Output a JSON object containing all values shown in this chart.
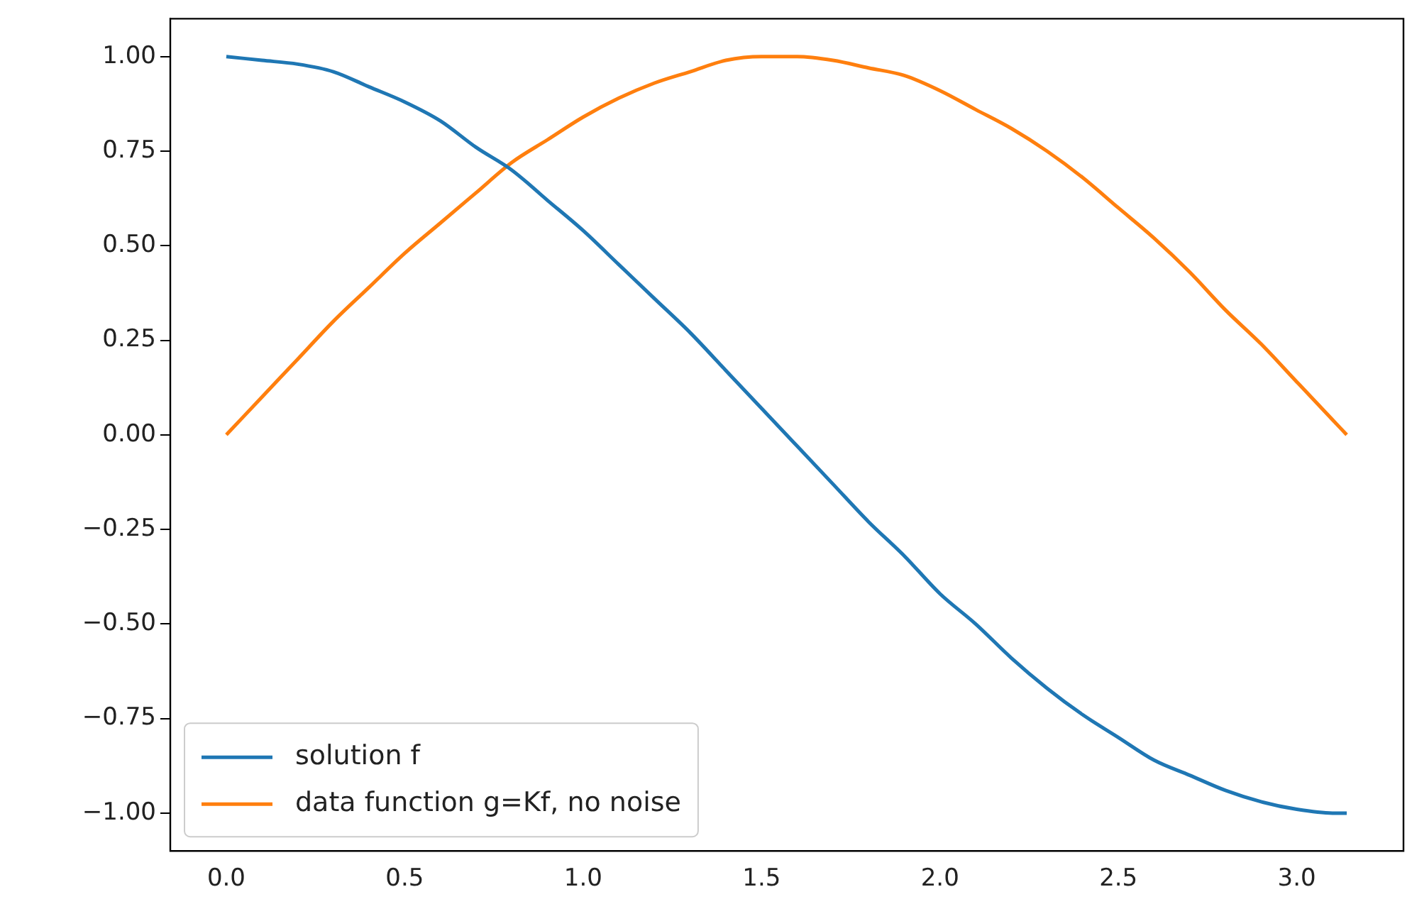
{
  "chart_data": {
    "type": "line",
    "x": [
      0,
      0.1,
      0.2,
      0.3,
      0.4,
      0.5,
      0.6,
      0.7,
      0.8,
      0.9,
      1.0,
      1.1,
      1.2,
      1.3,
      1.4,
      1.5,
      1.6,
      1.7,
      1.8,
      1.9,
      2.0,
      2.1,
      2.2,
      2.3,
      2.4,
      2.5,
      2.6,
      2.7,
      2.8,
      2.9,
      3.0,
      3.1,
      3.14
    ],
    "series": [
      {
        "name": "solution f",
        "color": "#1f77b4",
        "values": [
          1,
          0.99,
          0.98,
          0.96,
          0.92,
          0.88,
          0.83,
          0.76,
          0.7,
          0.62,
          0.54,
          0.45,
          0.36,
          0.27,
          0.17,
          0.07,
          -0.03,
          -0.13,
          -0.23,
          -0.32,
          -0.42,
          -0.5,
          -0.59,
          -0.67,
          -0.74,
          -0.8,
          -0.86,
          -0.9,
          -0.94,
          -0.97,
          -0.99,
          -1,
          -1
        ]
      },
      {
        "name": "data function g=Kf, no noise",
        "color": "#ff7f0e",
        "values": [
          0,
          0.1,
          0.2,
          0.3,
          0.39,
          0.48,
          0.56,
          0.64,
          0.72,
          0.78,
          0.84,
          0.89,
          0.93,
          0.96,
          0.99,
          1,
          1,
          0.99,
          0.97,
          0.95,
          0.91,
          0.86,
          0.81,
          0.75,
          0.68,
          0.6,
          0.52,
          0.43,
          0.33,
          0.24,
          0.14,
          0.04,
          0
        ]
      }
    ],
    "xlim": [
      -0.157,
      3.299
    ],
    "ylim": [
      -1.1,
      1.1
    ],
    "xticks": [
      {
        "value": 0,
        "label": "0.0"
      },
      {
        "value": 0.5,
        "label": "0.5"
      },
      {
        "value": 1,
        "label": "1.0"
      },
      {
        "value": 1.5,
        "label": "1.5"
      },
      {
        "value": 2,
        "label": "2.0"
      },
      {
        "value": 2.5,
        "label": "2.5"
      },
      {
        "value": 3,
        "label": "3.0"
      }
    ],
    "yticks": [
      {
        "value": -1,
        "label": "−1.00"
      },
      {
        "value": -0.75,
        "label": "−0.75"
      },
      {
        "value": -0.5,
        "label": "−0.50"
      },
      {
        "value": -0.25,
        "label": "−0.25"
      },
      {
        "value": 0,
        "label": "0.00"
      },
      {
        "value": 0.25,
        "label": "0.25"
      },
      {
        "value": 0.5,
        "label": "0.50"
      },
      {
        "value": 0.75,
        "label": "0.75"
      },
      {
        "value": 1,
        "label": "1.00"
      }
    ],
    "grid": false,
    "legend": "bottom left",
    "marker": "none",
    "line_style": "solid"
  }
}
